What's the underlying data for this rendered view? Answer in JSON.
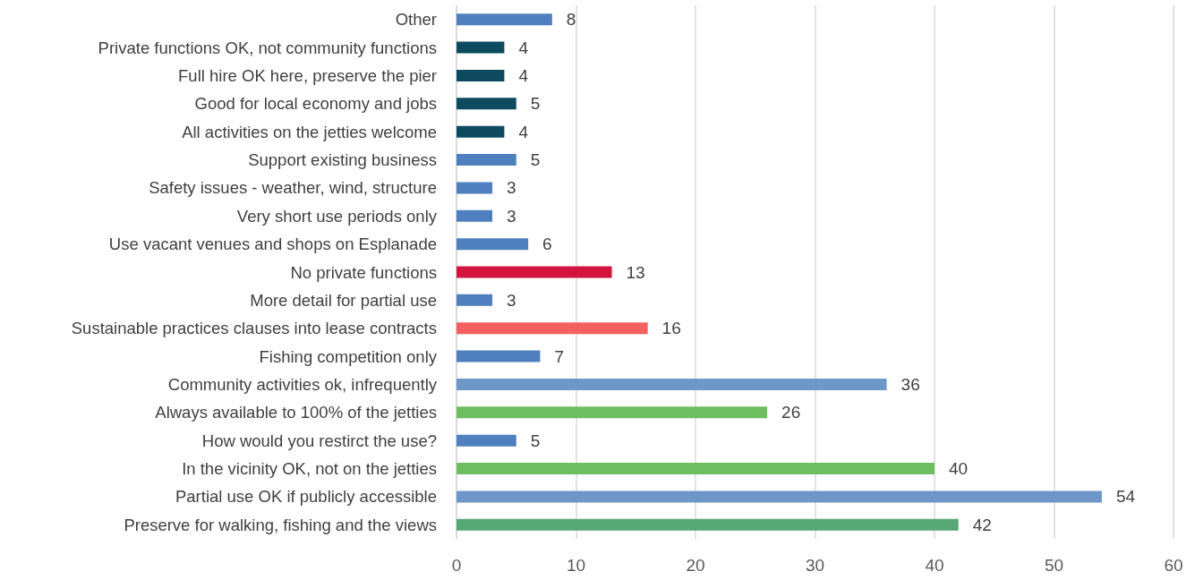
{
  "chart_data": {
    "type": "bar",
    "orientation": "horizontal",
    "categories": [
      "Other",
      "Private functions OK, not community functions",
      "Full hire OK here, preserve the pier",
      "Good for local economy and jobs",
      "All activities on the jetties welcome",
      "Support existing business",
      "Safety issues - weather, wind, structure",
      "Very short use periods only",
      "Use vacant venues and shops on Esplanade",
      "No private functions",
      "More detail for partial use",
      "Sustainable practices clauses into lease contracts",
      "Fishing competition only",
      "Community activities ok, infrequently",
      "Always available to 100% of the jetties",
      "How would you restirct the use?",
      "In the vicinity OK, not on the jetties",
      "Partial use OK if publicly accessible",
      "Preserve for walking, fishing and the views"
    ],
    "values": [
      8,
      4,
      4,
      5,
      4,
      5,
      3,
      3,
      6,
      13,
      3,
      16,
      7,
      36,
      26,
      5,
      40,
      54,
      42
    ],
    "colors": [
      "#4f7fbf",
      "#0d4a5f",
      "#0d4a5f",
      "#0d4a5f",
      "#0d4a5f",
      "#4f7fbf",
      "#4f7fbf",
      "#4f7fbf",
      "#4f7fbf",
      "#d2143e",
      "#4f7fbf",
      "#f4605f",
      "#4f7fbf",
      "#6d97c8",
      "#6cbe5f",
      "#4f7fbf",
      "#6cbe5f",
      "#6d97c8",
      "#56a774"
    ],
    "xlim": [
      0,
      60
    ],
    "xticks": [
      0,
      10,
      20,
      30,
      40,
      50,
      60
    ],
    "grid": "x",
    "data_labels": true
  }
}
